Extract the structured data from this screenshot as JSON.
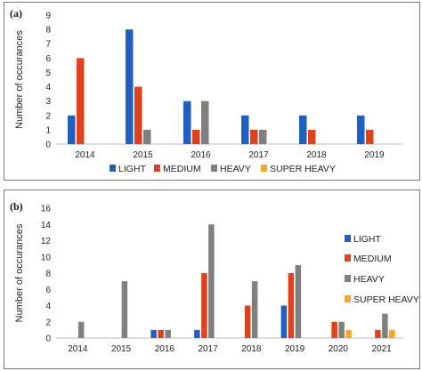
{
  "colors": {
    "light": "#1f5fbf",
    "medium": "#e0401a",
    "heavy": "#808080",
    "super_heavy": "#f5a623"
  },
  "chart_data": [
    {
      "type": "bar",
      "panel_label": "(a)",
      "categories": [
        "2014",
        "2015",
        "2016",
        "2017",
        "2018",
        "2019"
      ],
      "ylabel": "Number of occurances",
      "xlabel": "",
      "ylim": [
        0,
        9
      ],
      "yticks": [
        0,
        1,
        2,
        3,
        4,
        5,
        6,
        7,
        8,
        9
      ],
      "grid": false,
      "legend_placement": "bottom",
      "series": [
        {
          "name": "LIGHT",
          "color_key": "light",
          "values": [
            2,
            8,
            3,
            2,
            2,
            2
          ]
        },
        {
          "name": "MEDIUM",
          "color_key": "medium",
          "values": [
            6,
            4,
            1,
            1,
            1,
            1
          ]
        },
        {
          "name": "HEAVY",
          "color_key": "heavy",
          "values": [
            0,
            1,
            3,
            1,
            0,
            0
          ]
        },
        {
          "name": "SUPER HEAVY",
          "color_key": "super_heavy",
          "values": [
            0,
            0,
            0,
            0,
            0,
            0
          ]
        }
      ]
    },
    {
      "type": "bar",
      "panel_label": "(b)",
      "categories": [
        "2014",
        "2015",
        "2016",
        "2017",
        "2018",
        "2019",
        "2020",
        "2021"
      ],
      "ylabel": "Number of occurances",
      "xlabel": "",
      "ylim": [
        0,
        16
      ],
      "yticks": [
        0,
        2,
        4,
        6,
        8,
        10,
        12,
        14,
        16
      ],
      "grid": false,
      "legend_placement": "right",
      "series": [
        {
          "name": "LIGHT",
          "color_key": "light",
          "values": [
            0,
            0,
            1,
            1,
            0,
            4,
            0,
            0
          ]
        },
        {
          "name": "MEDIUM",
          "color_key": "medium",
          "values": [
            0,
            0,
            1,
            8,
            4,
            8,
            2,
            1
          ]
        },
        {
          "name": "HEAVY",
          "color_key": "heavy",
          "values": [
            2,
            7,
            1,
            14,
            7,
            9,
            2,
            3
          ]
        },
        {
          "name": "SUPER HEAVY",
          "color_key": "super_heavy",
          "values": [
            0,
            0,
            0,
            0,
            0,
            0,
            1,
            1
          ]
        }
      ]
    }
  ]
}
